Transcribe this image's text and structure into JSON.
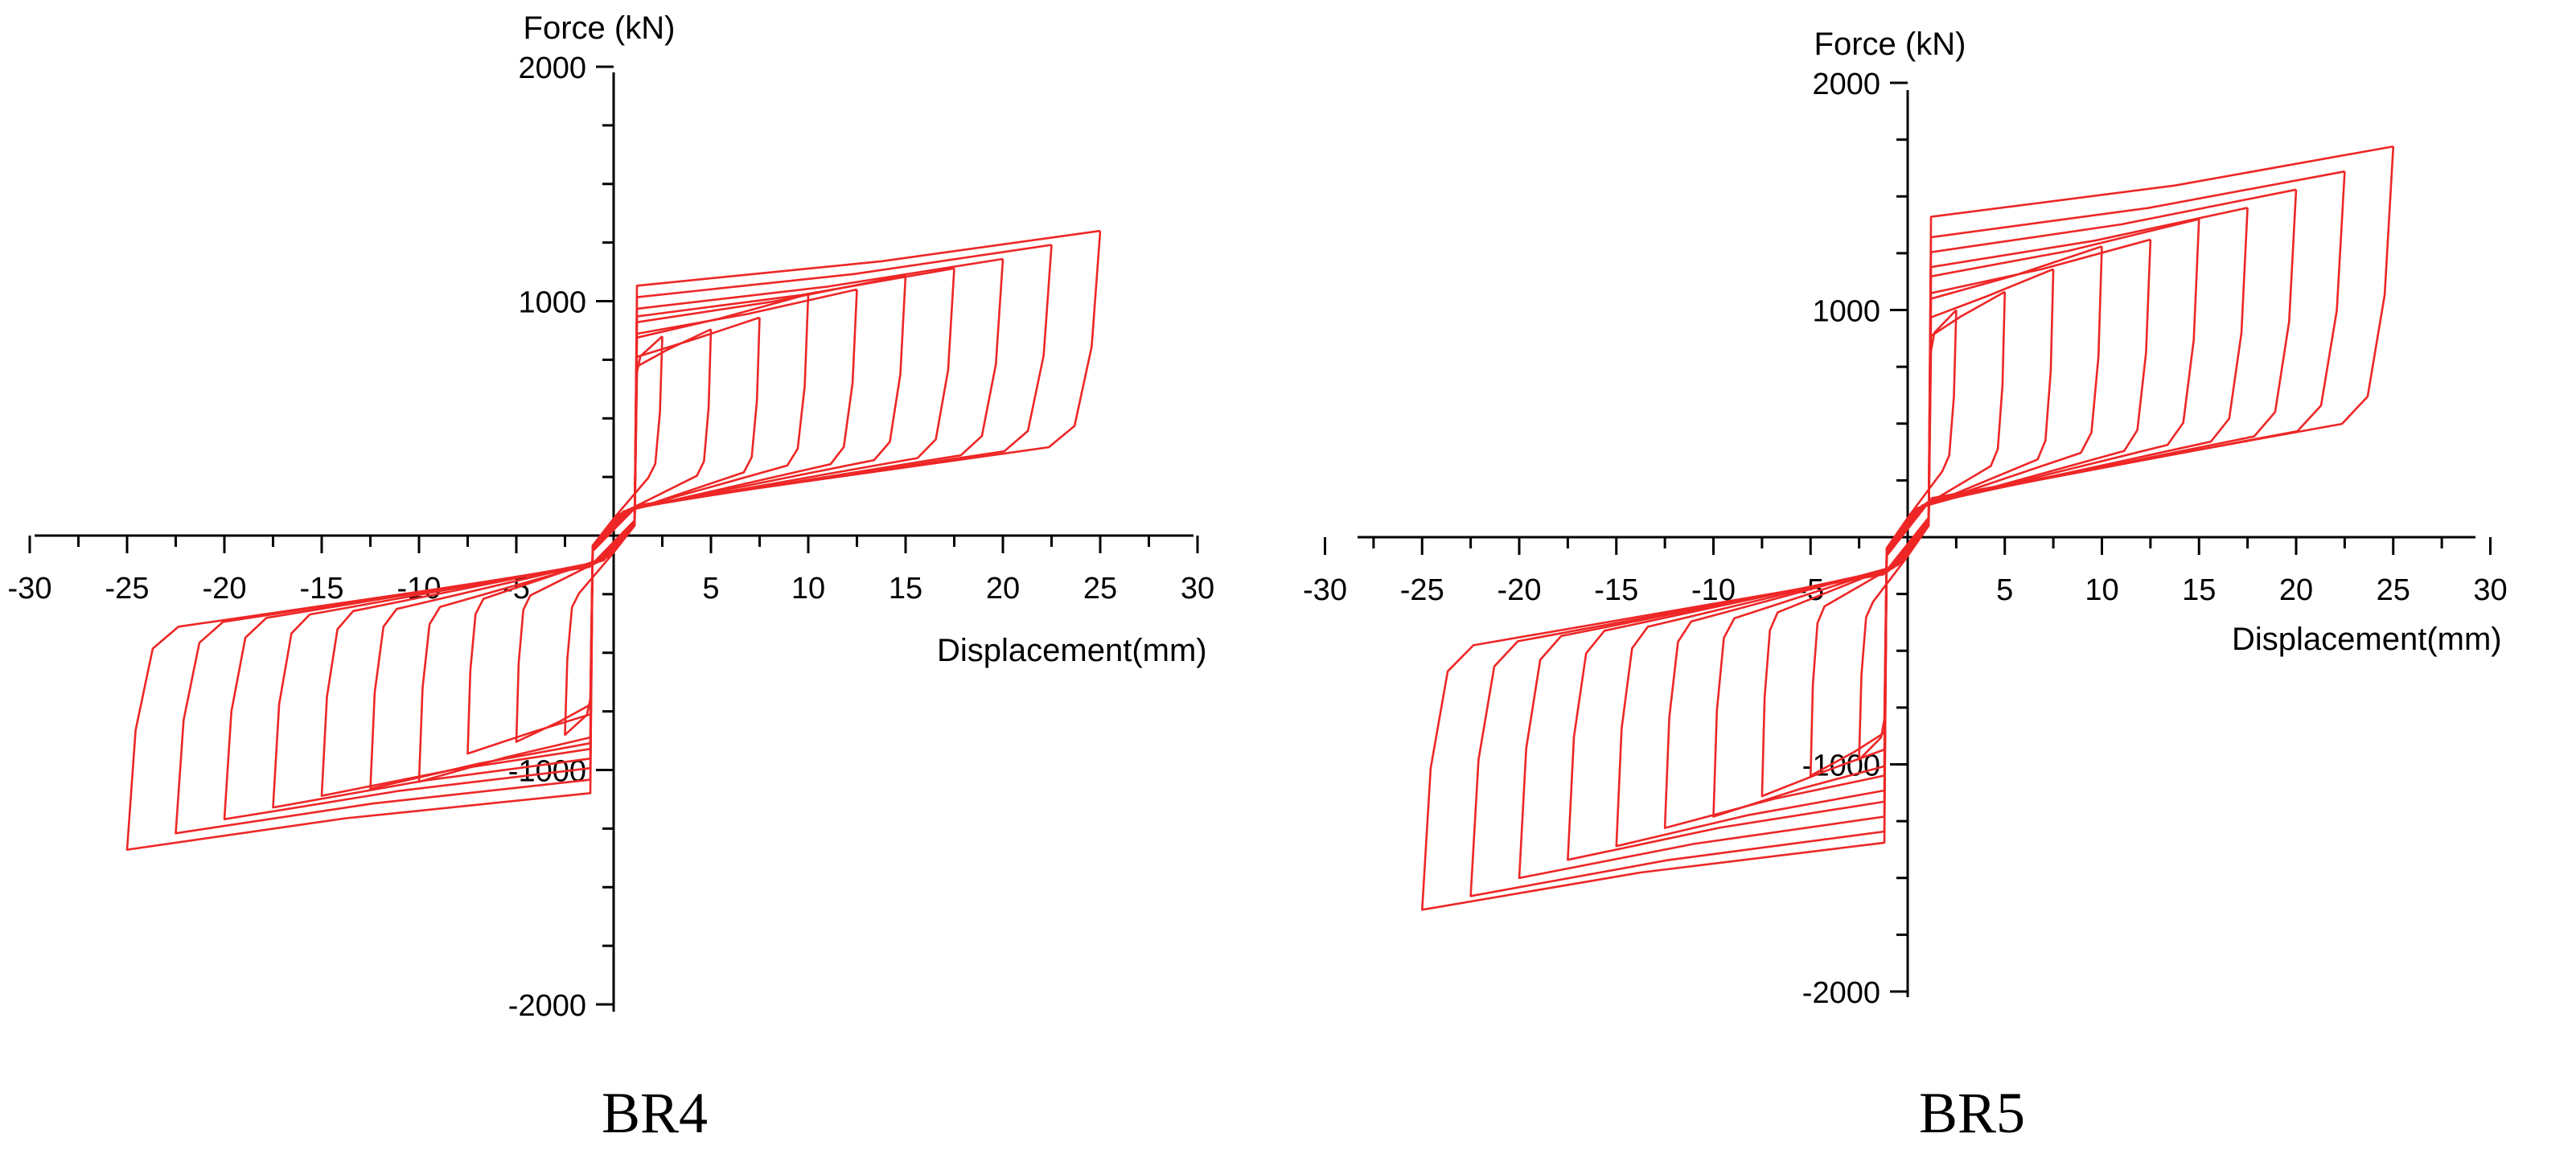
{
  "chart_data": [
    {
      "type": "line",
      "title": "BR4",
      "xlabel": "Displacement(mm)",
      "ylabel": "Force (kN)",
      "xlim": [
        -30,
        30
      ],
      "ylim": [
        -2000,
        2000
      ],
      "x_ticks": [
        -30,
        -25,
        -20,
        -15,
        -10,
        -5,
        5,
        10,
        15,
        20,
        25,
        30
      ],
      "y_ticks": [
        2000,
        1000,
        -1000,
        -2000
      ],
      "grid": false,
      "series": [
        {
          "amplitude": 2.5,
          "peak_pos": 850,
          "peak_neg": -850
        },
        {
          "amplitude": 5,
          "peak_pos": 880,
          "peak_neg": -880
        },
        {
          "amplitude": 7.5,
          "peak_pos": 930,
          "peak_neg": -930
        },
        {
          "amplitude": 10,
          "peak_pos": 1030,
          "peak_neg": -1050
        },
        {
          "amplitude": 12.5,
          "peak_pos": 1050,
          "peak_neg": -1080
        },
        {
          "amplitude": 15,
          "peak_pos": 1110,
          "peak_neg": -1110
        },
        {
          "amplitude": 17.5,
          "peak_pos": 1140,
          "peak_neg": -1160
        },
        {
          "amplitude": 20,
          "peak_pos": 1180,
          "peak_neg": -1210
        },
        {
          "amplitude": 22.5,
          "peak_pos": 1240,
          "peak_neg": -1270
        },
        {
          "amplitude": 25,
          "peak_pos": 1300,
          "peak_neg": -1340
        }
      ]
    },
    {
      "type": "line",
      "title": "BR5",
      "xlabel": "Displacement(mm)",
      "ylabel": "Force (kN)",
      "xlim": [
        -30,
        30
      ],
      "ylim": [
        -2000,
        2000
      ],
      "x_ticks": [
        -30,
        -25,
        -20,
        -15,
        -10,
        -5,
        5,
        10,
        15,
        20,
        25,
        30
      ],
      "y_ticks": [
        2000,
        1000,
        -1000,
        -2000
      ],
      "grid": false,
      "series": [
        {
          "amplitude": 2.5,
          "peak_pos": 1000,
          "peak_neg": -980
        },
        {
          "amplitude": 5,
          "peak_pos": 1080,
          "peak_neg": -1050
        },
        {
          "amplitude": 7.5,
          "peak_pos": 1180,
          "peak_neg": -1140
        },
        {
          "amplitude": 10,
          "peak_pos": 1280,
          "peak_neg": -1230
        },
        {
          "amplitude": 12.5,
          "peak_pos": 1310,
          "peak_neg": -1280
        },
        {
          "amplitude": 15,
          "peak_pos": 1400,
          "peak_neg": -1360
        },
        {
          "amplitude": 17.5,
          "peak_pos": 1450,
          "peak_neg": -1420
        },
        {
          "amplitude": 20,
          "peak_pos": 1530,
          "peak_neg": -1500
        },
        {
          "amplitude": 22.5,
          "peak_pos": 1610,
          "peak_neg": -1580
        },
        {
          "amplitude": 25,
          "peak_pos": 1720,
          "peak_neg": -1640
        }
      ]
    }
  ]
}
